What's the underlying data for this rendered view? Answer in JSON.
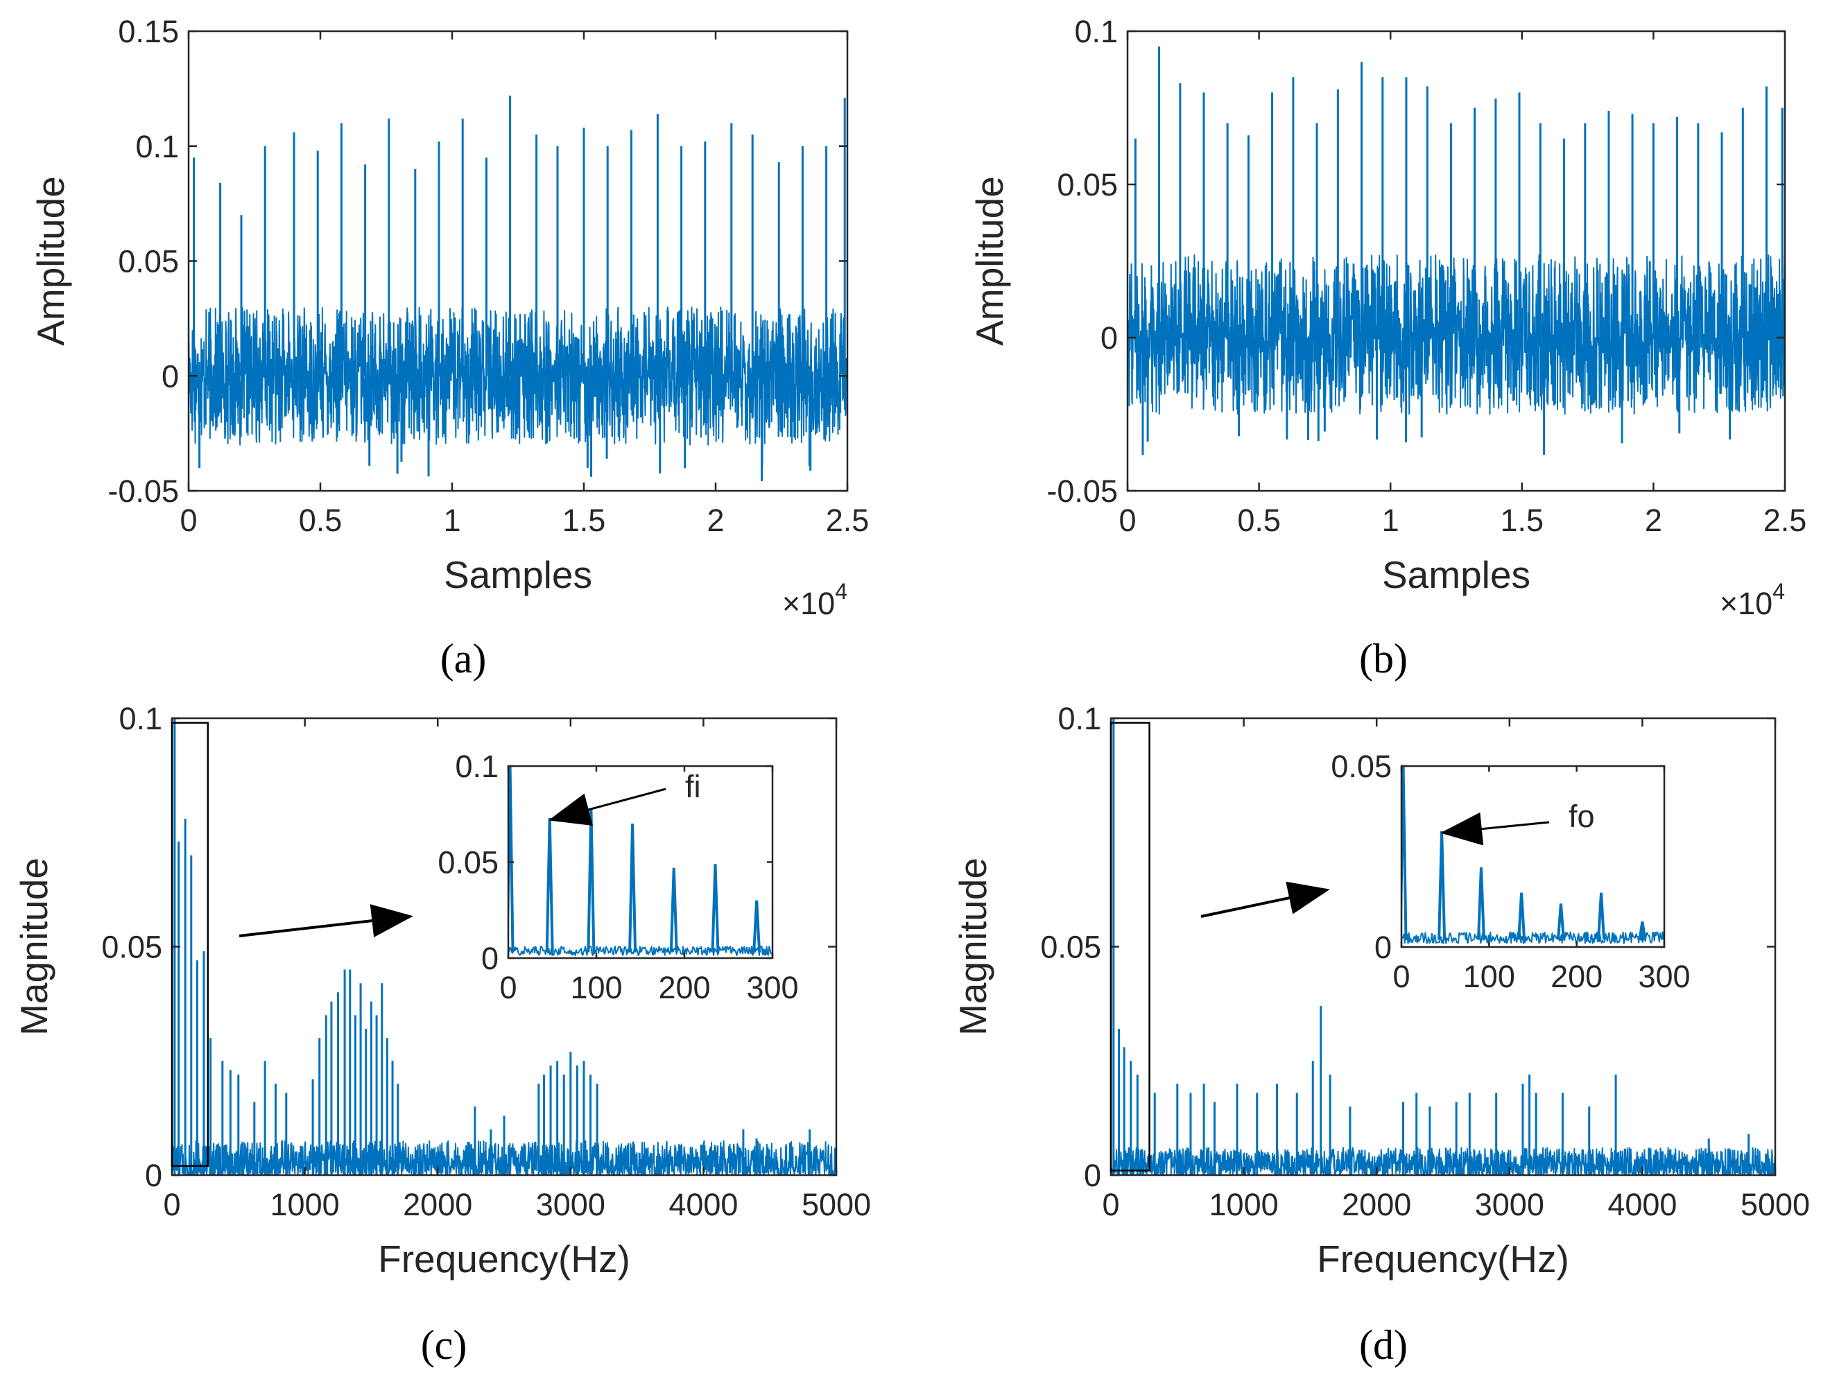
{
  "chart_data": [
    {
      "id": "a",
      "type": "line",
      "caption": "(a)",
      "xlabel": "Samples",
      "ylabel": "Amplitude",
      "x_multiplier": "×10^4",
      "xlim": [
        0,
        2.5
      ],
      "ylim": [
        -0.05,
        0.15
      ],
      "xticks": [
        0,
        0.5,
        1,
        1.5,
        2,
        2.5
      ],
      "xtick_labels": [
        "0",
        "0.5",
        "1",
        "1.5",
        "2",
        "2.5"
      ],
      "yticks": [
        -0.05,
        0,
        0.05,
        0.1,
        0.15
      ],
      "ytick_labels": [
        "-0.05",
        "0",
        "0.05",
        "0.1",
        "0.15"
      ],
      "grid": false,
      "color": "#0072BD",
      "noise_band": [
        -0.03,
        0.03
      ],
      "impulses_x": [
        0.02,
        0.12,
        0.2,
        0.29,
        0.4,
        0.49,
        0.58,
        0.67,
        0.76,
        0.86,
        0.95,
        1.04,
        1.13,
        1.22,
        1.32,
        1.4,
        1.5,
        1.59,
        1.68,
        1.78,
        1.87,
        1.96,
        2.06,
        2.14,
        2.24,
        2.33,
        2.42,
        2.49
      ],
      "impulses_y": [
        0.095,
        0.084,
        0.07,
        0.1,
        0.106,
        0.098,
        0.11,
        0.092,
        0.112,
        0.09,
        0.102,
        0.112,
        0.095,
        0.122,
        0.105,
        0.1,
        0.108,
        0.1,
        0.107,
        0.114,
        0.1,
        0.102,
        0.11,
        0.105,
        0.093,
        0.1,
        0.1,
        0.121
      ]
    },
    {
      "id": "b",
      "type": "line",
      "caption": "(b)",
      "xlabel": "Samples",
      "ylabel": "Amplitude",
      "x_multiplier": "×10^4",
      "xlim": [
        0,
        2.5
      ],
      "ylim": [
        -0.05,
        0.1
      ],
      "xticks": [
        0,
        0.5,
        1,
        1.5,
        2,
        2.5
      ],
      "xtick_labels": [
        "0",
        "0.5",
        "1",
        "1.5",
        "2",
        "2.5"
      ],
      "yticks": [
        -0.05,
        0,
        0.05,
        0.1
      ],
      "ytick_labels": [
        "-0.05",
        "0",
        "0.05",
        "0.1"
      ],
      "grid": false,
      "color": "#0072BD",
      "noise_band": [
        -0.025,
        0.027
      ],
      "impulses_x": [
        0.03,
        0.12,
        0.2,
        0.29,
        0.38,
        0.46,
        0.55,
        0.63,
        0.72,
        0.8,
        0.89,
        0.97,
        1.06,
        1.14,
        1.23,
        1.32,
        1.4,
        1.49,
        1.57,
        1.66,
        1.74,
        1.83,
        1.92,
        2.0,
        2.09,
        2.17,
        2.26,
        2.34,
        2.43,
        2.49
      ],
      "impulses_y": [
        0.065,
        0.095,
        0.083,
        0.08,
        0.07,
        0.066,
        0.08,
        0.085,
        0.07,
        0.081,
        0.09,
        0.085,
        0.085,
        0.082,
        0.07,
        0.075,
        0.078,
        0.08,
        0.07,
        0.065,
        0.07,
        0.074,
        0.073,
        0.07,
        0.072,
        0.07,
        0.067,
        0.075,
        0.082,
        0.075
      ]
    },
    {
      "id": "c",
      "type": "line",
      "caption": "(c)",
      "xlabel": "Frequency(Hz)",
      "ylabel": "Magnitude",
      "xlim": [
        0,
        5000
      ],
      "ylim": [
        0,
        0.1
      ],
      "xticks": [
        0,
        1000,
        2000,
        3000,
        4000,
        5000
      ],
      "xtick_labels": [
        "0",
        "1000",
        "2000",
        "3000",
        "4000",
        "5000"
      ],
      "yticks": [
        0,
        0.05,
        0.1
      ],
      "ytick_labels": [
        "0",
        "0.05",
        "0.1"
      ],
      "grid": false,
      "color": "#0072BD",
      "noise_level": 0.005,
      "peaks_x": [
        20,
        50,
        100,
        145,
        190,
        240,
        290,
        380,
        440,
        500,
        620,
        700,
        780,
        860,
        1060,
        1110,
        1160,
        1200,
        1250,
        1300,
        1340,
        1380,
        1420,
        1460,
        1500,
        1540,
        1580,
        1620,
        1660,
        1700,
        2280,
        2400,
        2500,
        2760,
        2800,
        2850,
        2900,
        2950,
        3000,
        3050,
        3100,
        3150,
        3200,
        4300,
        4400,
        4800
      ],
      "peaks_y": [
        0.1,
        0.073,
        0.078,
        0.07,
        0.047,
        0.049,
        0.03,
        0.025,
        0.023,
        0.022,
        0.016,
        0.025,
        0.02,
        0.018,
        0.021,
        0.03,
        0.035,
        0.038,
        0.04,
        0.045,
        0.045,
        0.035,
        0.042,
        0.032,
        0.038,
        0.035,
        0.042,
        0.03,
        0.025,
        0.02,
        0.015,
        0.01,
        0.013,
        0.02,
        0.022,
        0.024,
        0.025,
        0.022,
        0.027,
        0.024,
        0.025,
        0.022,
        0.02,
        0.01,
        0.008,
        0.01
      ],
      "highlight_box": {
        "x": [
          0,
          270
        ],
        "y": [
          0.002,
          0.099
        ]
      },
      "inset": {
        "xlim": [
          0,
          300
        ],
        "ylim": [
          0,
          0.1
        ],
        "xticks": [
          0,
          100,
          200,
          300
        ],
        "xtick_labels": [
          "0",
          "100",
          "200",
          "300"
        ],
        "yticks": [
          0,
          0.05,
          0.1
        ],
        "ytick_labels": [
          "0",
          "0.05",
          "0.1"
        ],
        "peaks_x": [
          2,
          47,
          94,
          141,
          188,
          235,
          282
        ],
        "peaks_y": [
          0.1,
          0.073,
          0.078,
          0.07,
          0.047,
          0.049,
          0.03
        ],
        "noise_level": 0.006,
        "annotation": {
          "text": "fi",
          "x": 47,
          "y": 0.073
        }
      }
    },
    {
      "id": "d",
      "type": "line",
      "caption": "(d)",
      "xlabel": "Frequency(Hz)",
      "ylabel": "Magnitude",
      "xlim": [
        0,
        5000
      ],
      "ylim": [
        0,
        0.1
      ],
      "xticks": [
        0,
        1000,
        2000,
        3000,
        4000,
        5000
      ],
      "xtick_labels": [
        "0",
        "1000",
        "2000",
        "3000",
        "4000",
        "5000"
      ],
      "yticks": [
        0,
        0.05,
        0.1
      ],
      "ytick_labels": [
        "0",
        "0.05",
        "0.1"
      ],
      "grid": false,
      "color": "#0072BD",
      "noise_level": 0.004,
      "peaks_x": [
        20,
        60,
        100,
        150,
        200,
        330,
        500,
        600,
        700,
        780,
        950,
        1100,
        1250,
        1400,
        1520,
        1580,
        1650,
        1800,
        2200,
        2300,
        2400,
        2600,
        2700,
        2900,
        3100,
        3150,
        3200,
        3400,
        3600,
        3800,
        4500,
        4800
      ],
      "peaks_y": [
        0.1,
        0.032,
        0.028,
        0.025,
        0.022,
        0.018,
        0.02,
        0.018,
        0.02,
        0.016,
        0.02,
        0.018,
        0.02,
        0.018,
        0.025,
        0.037,
        0.022,
        0.015,
        0.016,
        0.018,
        0.015,
        0.016,
        0.018,
        0.018,
        0.02,
        0.022,
        0.018,
        0.018,
        0.015,
        0.022,
        0.008,
        0.009
      ],
      "highlight_box": {
        "x": [
          0,
          290
        ],
        "y": [
          0.001,
          0.099
        ]
      },
      "inset": {
        "xlim": [
          0,
          300
        ],
        "ylim": [
          0,
          0.05
        ],
        "xticks": [
          0,
          100,
          200,
          300
        ],
        "xtick_labels": [
          "0",
          "100",
          "200",
          "300"
        ],
        "yticks": [
          0,
          0.05
        ],
        "ytick_labels": [
          "0",
          "0.05"
        ],
        "peaks_x": [
          2,
          46,
          91,
          137,
          182,
          228,
          275
        ],
        "peaks_y": [
          0.05,
          0.032,
          0.022,
          0.015,
          0.012,
          0.015,
          0.007
        ],
        "noise_level": 0.004,
        "annotation": {
          "text": "fo",
          "x": 46,
          "y": 0.032
        }
      }
    }
  ]
}
